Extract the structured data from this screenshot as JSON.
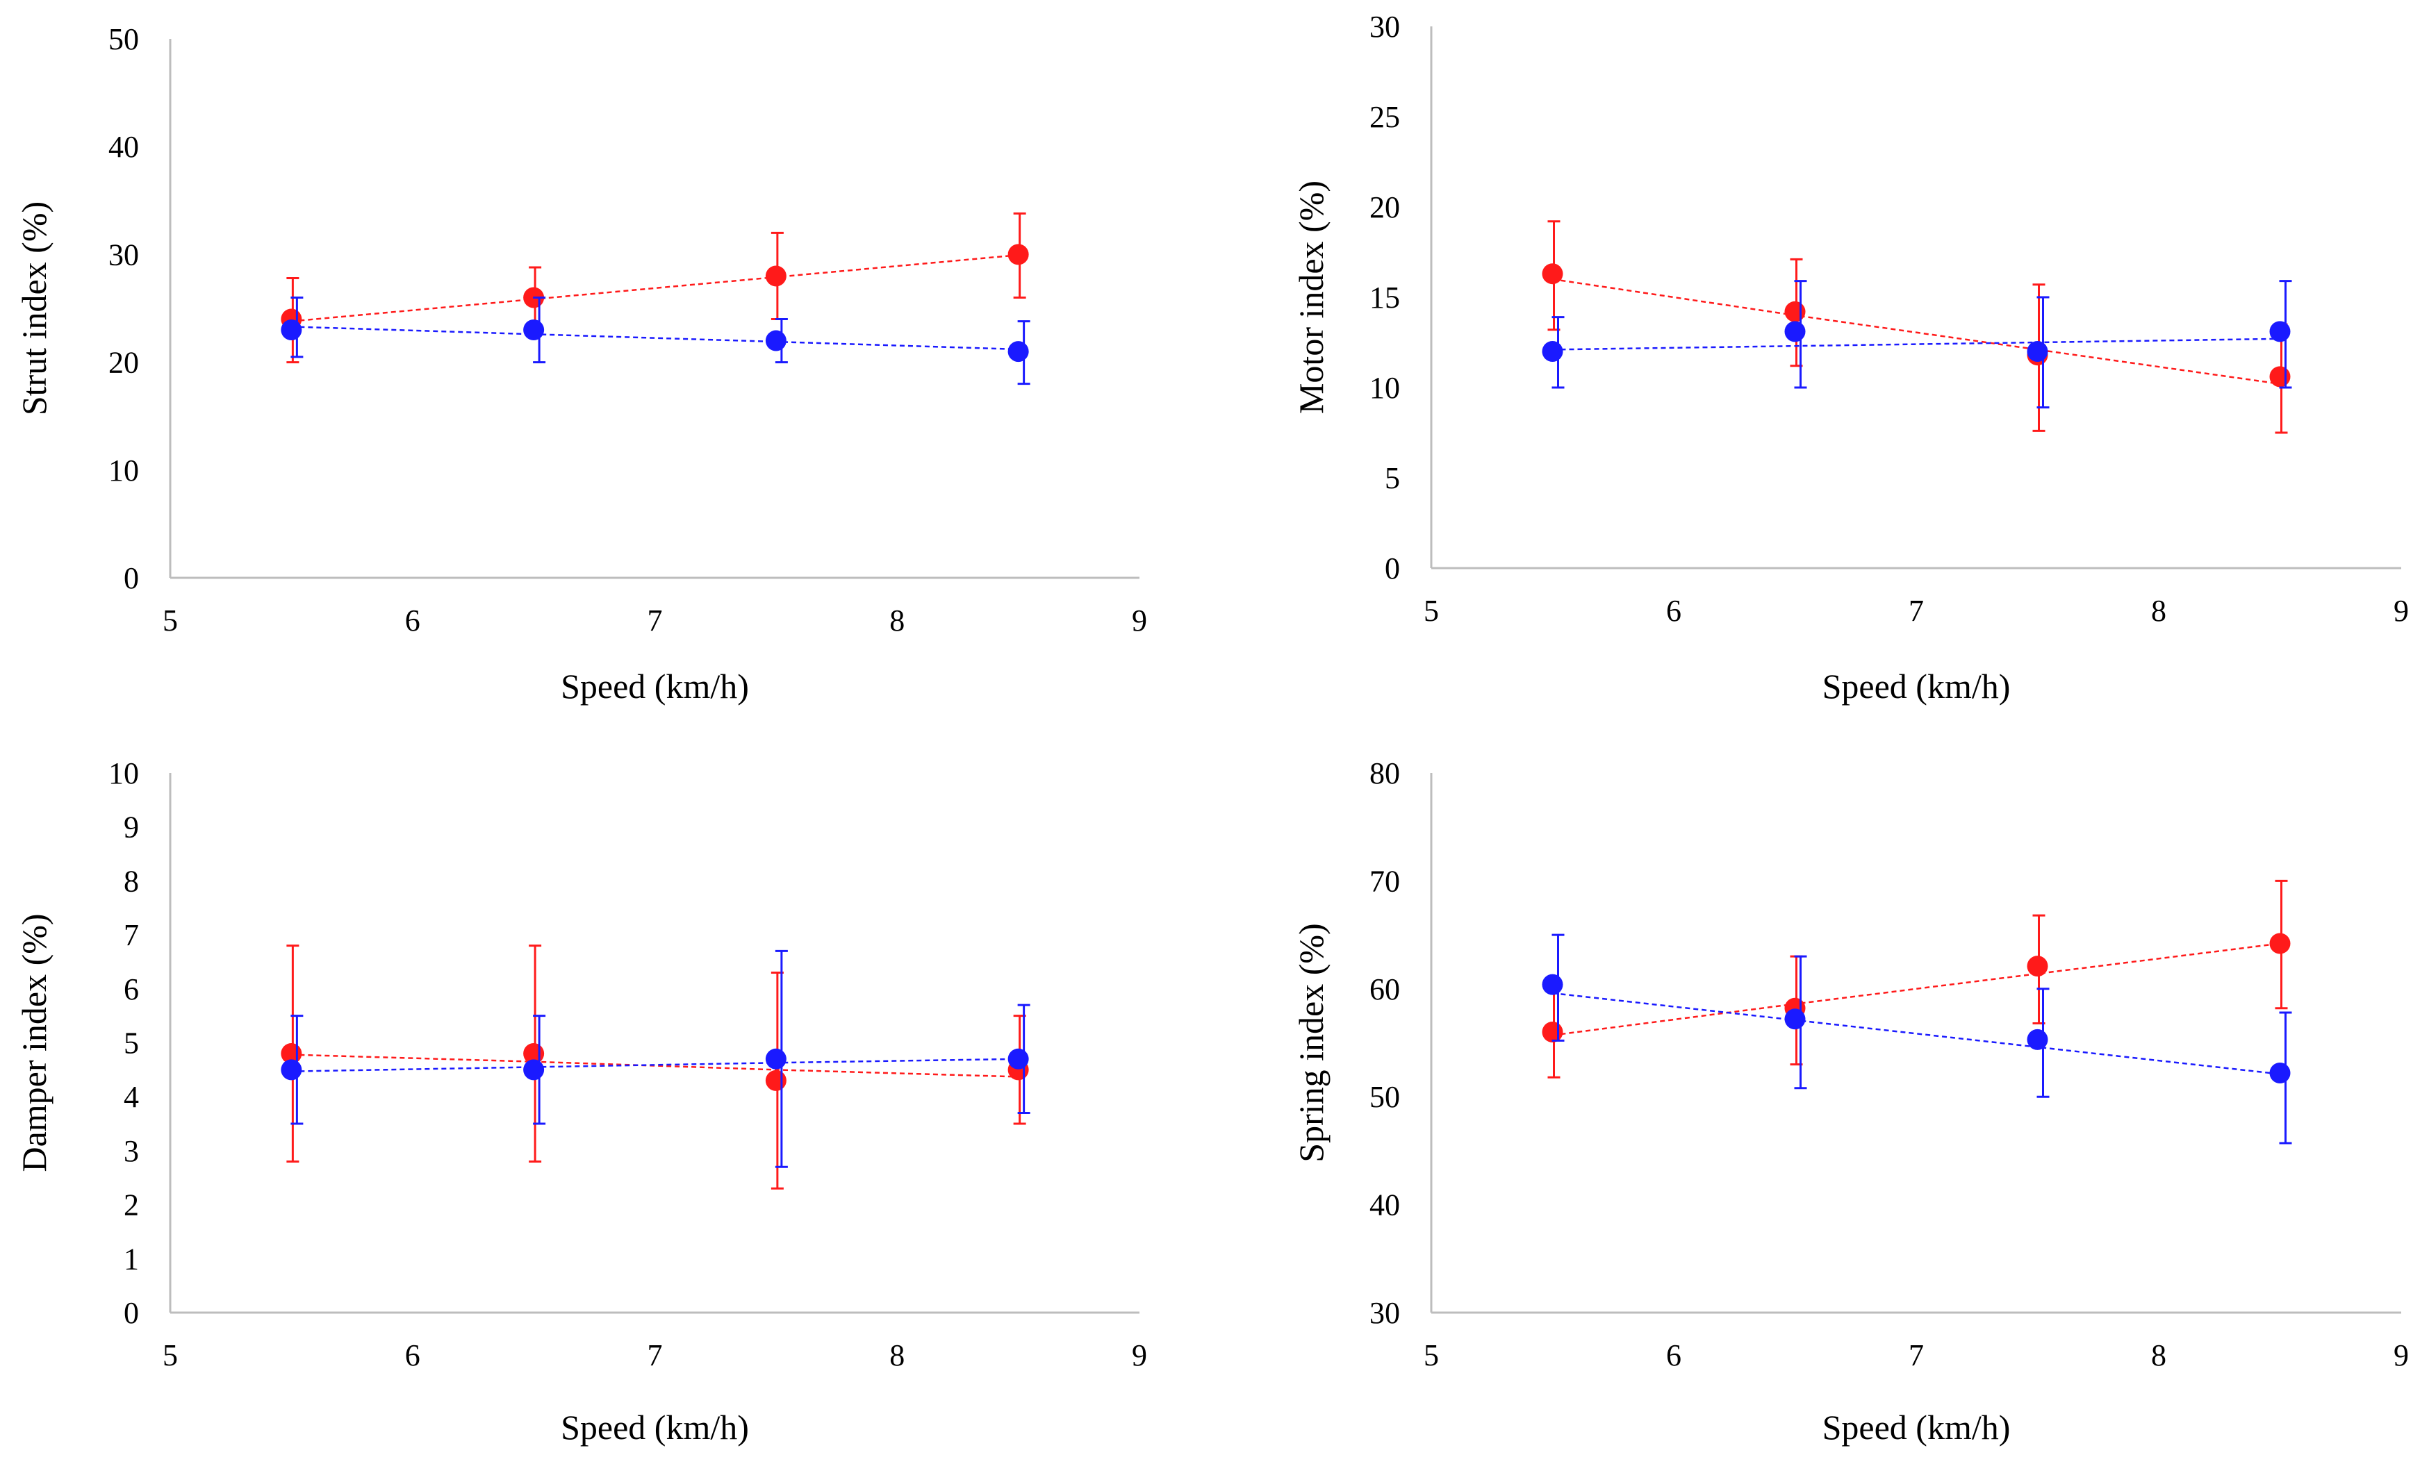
{
  "colors": {
    "red": "#ff1a1a",
    "blue": "#1a1aff",
    "axis": "#bdbdbd"
  },
  "chart_data": [
    {
      "type": "scatter",
      "id": "strut",
      "title": "",
      "xlabel": "Speed (km/h)",
      "ylabel": "Strut index (%)",
      "xlim": [
        5,
        9
      ],
      "ylim": [
        0,
        50
      ],
      "xticks": [
        5,
        6,
        7,
        8,
        9
      ],
      "yticks": [
        0,
        10,
        20,
        30,
        40,
        50
      ],
      "x": [
        5.5,
        6.5,
        7.5,
        8.5
      ],
      "series": [
        {
          "name": "red",
          "color": "#ff1a1a",
          "values": [
            24,
            26,
            28,
            30
          ],
          "err_low": [
            20,
            23.5,
            24,
            26
          ],
          "err_high": [
            27.8,
            28.8,
            32,
            33.8
          ],
          "trend": [
            23.8,
            25.85,
            27.9,
            29.95
          ]
        },
        {
          "name": "blue",
          "color": "#1a1aff",
          "values": [
            23,
            23,
            22,
            21
          ],
          "err_low": [
            20.5,
            20,
            20,
            18
          ],
          "err_high": [
            26,
            26,
            24,
            23.8
          ],
          "trend": [
            23.3,
            22.6,
            21.9,
            21.2
          ]
        }
      ]
    },
    {
      "type": "scatter",
      "id": "motor",
      "title": "",
      "xlabel": "Speed (km/h)",
      "ylabel": "Motor index (%)",
      "xlim": [
        5,
        9
      ],
      "ylim": [
        0,
        30
      ],
      "xticks": [
        5,
        6,
        7,
        8,
        9
      ],
      "yticks": [
        0,
        5,
        10,
        15,
        20,
        25,
        30
      ],
      "x": [
        5.5,
        6.5,
        7.5,
        8.5
      ],
      "series": [
        {
          "name": "red",
          "color": "#ff1a1a",
          "values": [
            16.3,
            14.2,
            11.8,
            10.6
          ],
          "err_low": [
            13.2,
            11.2,
            7.6,
            7.5
          ],
          "err_high": [
            19.2,
            17.1,
            15.7,
            13.5
          ],
          "trend": [
            16.0,
            14.0,
            12.1,
            10.2
          ]
        },
        {
          "name": "blue",
          "color": "#1a1aff",
          "values": [
            12,
            13.1,
            12,
            13.1
          ],
          "err_low": [
            10,
            10,
            8.9,
            10
          ],
          "err_high": [
            13.9,
            15.9,
            15,
            15.9
          ],
          "trend": [
            12.1,
            12.3,
            12.5,
            12.7
          ]
        }
      ]
    },
    {
      "type": "scatter",
      "id": "damper",
      "title": "",
      "xlabel": "Speed (km/h)",
      "ylabel": "Damper index (%)",
      "xlim": [
        5,
        9
      ],
      "ylim": [
        0,
        10
      ],
      "xticks": [
        5,
        6,
        7,
        8,
        9
      ],
      "yticks": [
        0,
        1,
        2,
        3,
        4,
        5,
        6,
        7,
        8,
        9,
        10
      ],
      "x": [
        5.5,
        6.5,
        7.5,
        8.5
      ],
      "series": [
        {
          "name": "red",
          "color": "#ff1a1a",
          "values": [
            4.8,
            4.8,
            4.3,
            4.5
          ],
          "err_low": [
            2.8,
            2.8,
            2.3,
            3.5
          ],
          "err_high": [
            6.8,
            6.8,
            6.3,
            5.5
          ],
          "trend": [
            4.78,
            4.65,
            4.5,
            4.37
          ]
        },
        {
          "name": "blue",
          "color": "#1a1aff",
          "values": [
            4.5,
            4.5,
            4.7,
            4.7
          ],
          "err_low": [
            3.5,
            3.5,
            2.7,
            3.7
          ],
          "err_high": [
            5.5,
            5.5,
            6.7,
            5.7
          ],
          "trend": [
            4.47,
            4.55,
            4.63,
            4.7
          ]
        }
      ]
    },
    {
      "type": "scatter",
      "id": "spring",
      "title": "",
      "xlabel": "Speed (km/h)",
      "ylabel": "Spring index (%)",
      "xlim": [
        5,
        9
      ],
      "ylim": [
        30,
        80
      ],
      "xticks": [
        5,
        6,
        7,
        8,
        9
      ],
      "yticks": [
        30,
        40,
        50,
        60,
        70,
        80
      ],
      "x": [
        5.5,
        6.5,
        7.5,
        8.5
      ],
      "series": [
        {
          "name": "red",
          "color": "#ff1a1a",
          "values": [
            56,
            58.2,
            62.1,
            64.2
          ],
          "err_low": [
            51.8,
            53,
            56.8,
            58.2
          ],
          "err_high": [
            60.2,
            63,
            66.8,
            70
          ],
          "trend": [
            55.7,
            58.6,
            61.4,
            64.2
          ]
        },
        {
          "name": "blue",
          "color": "#1a1aff",
          "values": [
            60.4,
            57.2,
            55.3,
            52.2
          ],
          "err_low": [
            55.2,
            50.8,
            50,
            45.7
          ],
          "err_high": [
            65,
            63,
            60,
            57.8
          ],
          "trend": [
            59.6,
            57.1,
            54.6,
            52.1
          ]
        }
      ]
    }
  ]
}
